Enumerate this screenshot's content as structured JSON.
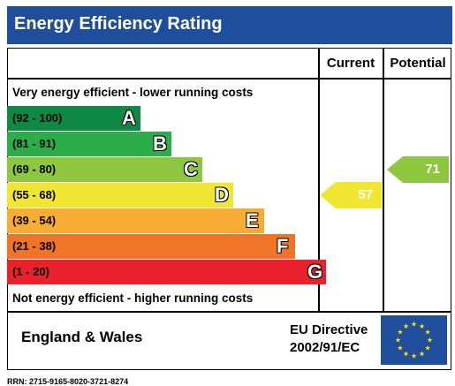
{
  "chart_data": {
    "type": "bar",
    "title": "Energy Efficiency Rating",
    "column_headers": [
      "Current",
      "Potential"
    ],
    "top_caption": "Very energy efficient - lower running costs",
    "bottom_caption": "Not energy efficient - higher running costs",
    "bands": [
      {
        "letter": "A",
        "range": "(92 - 100)",
        "color": "#0f8a44"
      },
      {
        "letter": "B",
        "range": "(81 - 91)",
        "color": "#2bae4a"
      },
      {
        "letter": "C",
        "range": "(69 - 80)",
        "color": "#8dc63f"
      },
      {
        "letter": "D",
        "range": "(55 - 68)",
        "color": "#f1e732"
      },
      {
        "letter": "E",
        "range": "(39 - 54)",
        "color": "#f7ad33"
      },
      {
        "letter": "F",
        "range": "(21 - 38)",
        "color": "#ef7428"
      },
      {
        "letter": "G",
        "range": "(1 - 20)",
        "color": "#e9212d"
      }
    ],
    "current": {
      "value": 57,
      "band": "D",
      "color": "#f1e732"
    },
    "potential": {
      "value": 71,
      "band": "C",
      "color": "#8dc63f"
    },
    "region": "England & Wales",
    "directive_line1": "EU Directive",
    "directive_line2": "2002/91/EC",
    "reference": "RRN: 2715-9165-8020-3721-8274"
  },
  "colors": {
    "title_bar": "#1f4e9c",
    "flag_blue": "#1f4e9c",
    "flag_star": "#ffdd00"
  }
}
